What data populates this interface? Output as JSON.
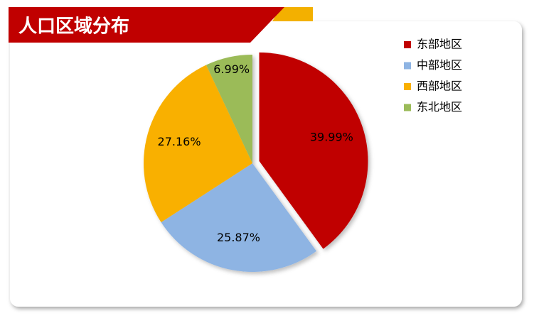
{
  "chart_data": {
    "type": "pie",
    "title": "人口区域分布",
    "categories": [
      "东部地区",
      "中部地区",
      "西部地区",
      "东北地区"
    ],
    "values": [
      39.99,
      25.87,
      27.16,
      6.99
    ],
    "value_labels": [
      "39.99%",
      "25.87%",
      "27.16%",
      "6.99%"
    ],
    "colors": [
      "#c00000",
      "#8eb4e3",
      "#f9b000",
      "#9bbb59"
    ],
    "legend": "top-right"
  }
}
